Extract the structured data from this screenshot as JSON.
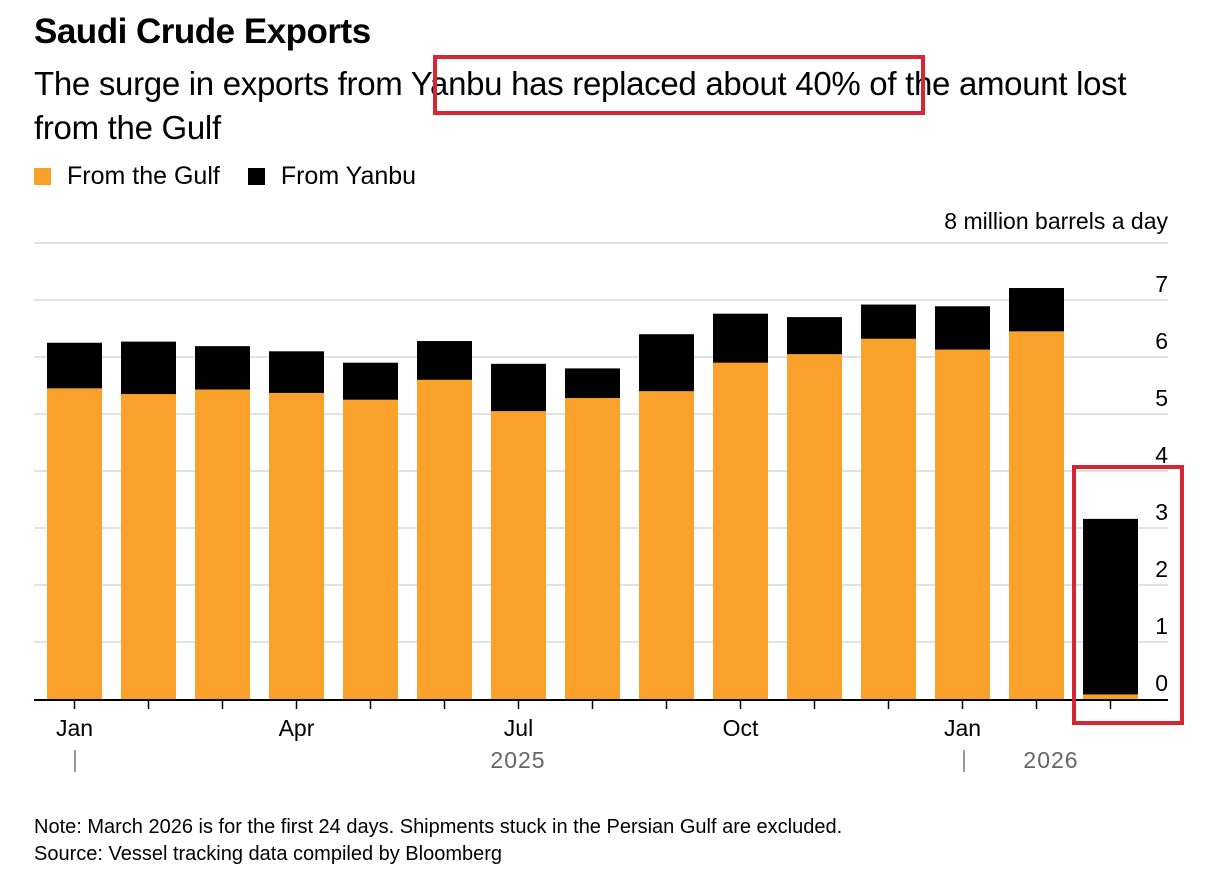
{
  "title": "Saudi Crude Exports",
  "subtitle": {
    "before": "The surge in exports from ",
    "highlight": "Yanbu has replaced about 40%",
    "after": " of the amount lost from the Gulf"
  },
  "colors": {
    "gulf": "#f9a12b",
    "yanbu": "#000000",
    "grid": "#d9d9d9",
    "highlight_box": "#d62633",
    "axis_label": "#666666"
  },
  "chart_data": {
    "type": "bar",
    "stacked": true,
    "unit_label": "8 million barrels a day",
    "ylim": [
      0,
      8
    ],
    "yticks": [
      "0",
      "1",
      "2",
      "3",
      "4",
      "5",
      "6",
      "7"
    ],
    "grid": true,
    "legend_position": "top-left",
    "categories": [
      "Jan 2025",
      "Feb 2025",
      "Mar 2025",
      "Apr 2025",
      "May 2025",
      "Jun 2025",
      "Jul 2025",
      "Aug 2025",
      "Sep 2025",
      "Oct 2025",
      "Nov 2025",
      "Dec 2025",
      "Jan 2026",
      "Feb 2026",
      "Mar 2026"
    ],
    "series": [
      {
        "name": "From the Gulf",
        "color_key": "gulf",
        "values": [
          5.45,
          5.35,
          5.43,
          5.37,
          5.25,
          5.6,
          5.05,
          5.28,
          5.4,
          5.9,
          6.05,
          6.32,
          6.13,
          6.45,
          0.08
        ]
      },
      {
        "name": "From Yanbu",
        "color_key": "yanbu",
        "values": [
          0.8,
          0.92,
          0.76,
          0.73,
          0.65,
          0.68,
          0.83,
          0.52,
          1.0,
          0.86,
          0.65,
          0.6,
          0.76,
          0.76,
          3.08
        ]
      }
    ],
    "x_tick_labels": [
      {
        "label": "Jan",
        "index": 0
      },
      {
        "label": "Apr",
        "index": 3
      },
      {
        "label": "Jul",
        "index": 6
      },
      {
        "label": "Oct",
        "index": 9
      },
      {
        "label": "Jan",
        "index": 12
      }
    ],
    "year_labels": [
      "2025",
      "2026"
    ],
    "highlighted_category_index": 14
  },
  "footer": {
    "note": "Note: March 2026 is for the first 24 days. Shipments stuck in the Persian Gulf are excluded.",
    "source": "Source: Vessel tracking data compiled by Bloomberg"
  }
}
